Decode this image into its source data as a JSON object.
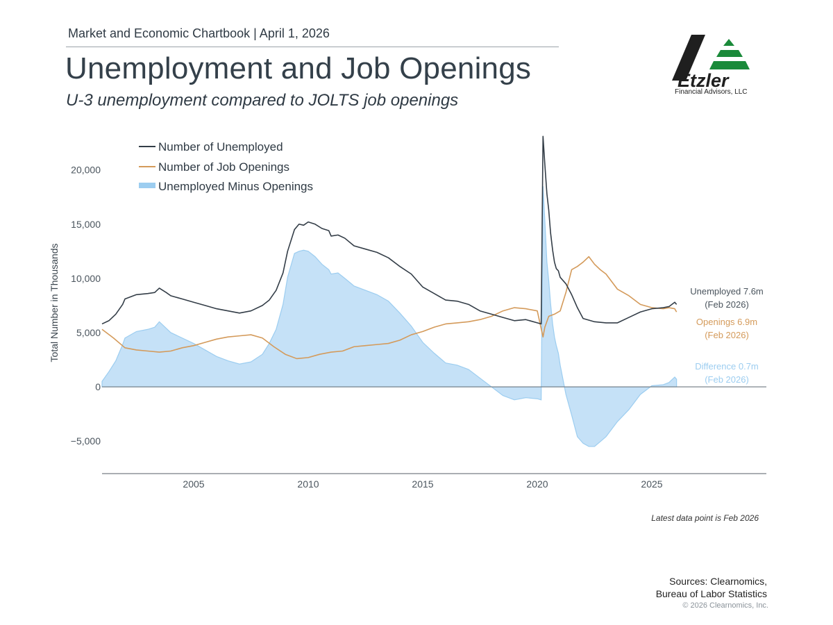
{
  "header": {
    "kicker": "Market and Economic Chartbook | April 1, 2026",
    "title": "Unemployment and Job Openings",
    "subtitle": "U-3 unemployment compared to JOLTS job openings"
  },
  "logo": {
    "name": "Etzler",
    "tagline": "Financial Advisors, LLC",
    "colors": {
      "dark": "#1f1f1f",
      "green": "#1a8a3a"
    }
  },
  "footer": {
    "latest_note": "Latest data point is Feb 2026",
    "sources_line1": "Sources: Clearnomics,",
    "sources_line2": "Bureau of Labor Statistics",
    "copyright": "© 2026 Clearnomics, Inc."
  },
  "chart_data": {
    "type": "line",
    "title": "Unemployment and Job Openings",
    "ylabel": "Total Number in Thousands",
    "xlabel": "",
    "ylim": [
      -8000,
      23500
    ],
    "xlim": [
      2001.0,
      2030.0
    ],
    "yticks": [
      -5000,
      0,
      5000,
      10000,
      15000,
      20000
    ],
    "ytick_labels": [
      "−5,000",
      "0",
      "5,000",
      "10,000",
      "15,000",
      "20,000"
    ],
    "xticks": [
      2005,
      2010,
      2015,
      2020,
      2025
    ],
    "xtick_labels": [
      "2005",
      "2010",
      "2015",
      "2020",
      "2025"
    ],
    "grid": false,
    "legend_position": "top-left",
    "colors": {
      "unemployed": "#333d47",
      "openings": "#d49a5a",
      "difference": "#c5e1f7",
      "difference_edge": "#9ccdf0",
      "zero_line": "#6d7780"
    },
    "series": [
      {
        "name": "Number of Unemployed",
        "x": [
          2001.0,
          2001.3,
          2001.6,
          2001.9,
          2002.0,
          2002.5,
          2003.0,
          2003.3,
          2003.5,
          2003.8,
          2004.0,
          2004.5,
          2005.0,
          2005.5,
          2006.0,
          2006.5,
          2007.0,
          2007.5,
          2008.0,
          2008.3,
          2008.6,
          2008.9,
          2009.1,
          2009.4,
          2009.6,
          2009.8,
          2010.0,
          2010.3,
          2010.6,
          2010.9,
          2011.0,
          2011.3,
          2011.6,
          2012.0,
          2012.5,
          2013.0,
          2013.5,
          2014.0,
          2014.5,
          2015.0,
          2015.5,
          2016.0,
          2016.5,
          2017.0,
          2017.5,
          2018.0,
          2018.5,
          2019.0,
          2019.5,
          2020.0,
          2020.17,
          2020.25,
          2020.33,
          2020.42,
          2020.5,
          2020.58,
          2020.67,
          2020.75,
          2020.83,
          2020.92,
          2021.0,
          2021.25,
          2021.5,
          2021.75,
          2022.0,
          2022.5,
          2023.0,
          2023.5,
          2024.0,
          2024.5,
          2025.0,
          2025.5,
          2025.75,
          2026.0,
          2026.08
        ],
        "values": [
          5800,
          6100,
          6700,
          7600,
          8100,
          8500,
          8600,
          8700,
          9100,
          8700,
          8400,
          8100,
          7800,
          7500,
          7200,
          7000,
          6800,
          7000,
          7500,
          8000,
          8900,
          10500,
          12500,
          14500,
          15000,
          14900,
          15200,
          15000,
          14600,
          14400,
          13900,
          14000,
          13700,
          13000,
          12700,
          12400,
          11900,
          11100,
          10400,
          9200,
          8600,
          8000,
          7900,
          7600,
          7000,
          6700,
          6400,
          6100,
          6200,
          5900,
          5800,
          23100,
          20500,
          17800,
          16300,
          14200,
          12600,
          11500,
          10900,
          10700,
          10100,
          9500,
          8500,
          7300,
          6300,
          6000,
          5900,
          5900,
          6400,
          6900,
          7200,
          7300,
          7400,
          7800,
          7600
        ]
      },
      {
        "name": "Number of Job Openings",
        "x": [
          2001.0,
          2001.5,
          2002.0,
          2002.5,
          2003.0,
          2003.5,
          2004.0,
          2004.5,
          2005.0,
          2005.5,
          2006.0,
          2006.5,
          2007.0,
          2007.5,
          2008.0,
          2008.5,
          2009.0,
          2009.5,
          2010.0,
          2010.5,
          2011.0,
          2011.5,
          2012.0,
          2012.5,
          2013.0,
          2013.5,
          2014.0,
          2014.5,
          2015.0,
          2015.5,
          2016.0,
          2016.5,
          2017.0,
          2017.5,
          2018.0,
          2018.5,
          2019.0,
          2019.5,
          2020.0,
          2020.25,
          2020.33,
          2020.5,
          2020.75,
          2021.0,
          2021.25,
          2021.5,
          2021.75,
          2022.0,
          2022.25,
          2022.5,
          2022.75,
          2023.0,
          2023.5,
          2024.0,
          2024.5,
          2025.0,
          2025.5,
          2025.75,
          2026.0,
          2026.08
        ],
        "values": [
          5300,
          4500,
          3600,
          3400,
          3300,
          3200,
          3300,
          3600,
          3800,
          4100,
          4400,
          4600,
          4700,
          4800,
          4500,
          3700,
          3000,
          2600,
          2700,
          3000,
          3200,
          3300,
          3700,
          3800,
          3900,
          4000,
          4300,
          4800,
          5100,
          5500,
          5800,
          5900,
          6000,
          6200,
          6500,
          7000,
          7300,
          7200,
          7000,
          4600,
          5500,
          6500,
          6700,
          7000,
          8700,
          10800,
          11100,
          11500,
          12000,
          11300,
          10800,
          10400,
          9000,
          8400,
          7600,
          7300,
          7200,
          7300,
          7200,
          6900
        ]
      },
      {
        "name": "Unemployed Minus Openings",
        "x": [
          2001.0,
          2001.3,
          2001.6,
          2001.9,
          2002.0,
          2002.5,
          2003.0,
          2003.3,
          2003.5,
          2003.8,
          2004.0,
          2004.5,
          2005.0,
          2005.5,
          2006.0,
          2006.5,
          2007.0,
          2007.5,
          2008.0,
          2008.3,
          2008.6,
          2008.9,
          2009.1,
          2009.4,
          2009.6,
          2009.8,
          2010.0,
          2010.3,
          2010.6,
          2010.9,
          2011.0,
          2011.3,
          2011.6,
          2012.0,
          2012.5,
          2013.0,
          2013.5,
          2014.0,
          2014.5,
          2015.0,
          2015.5,
          2016.0,
          2016.5,
          2017.0,
          2017.5,
          2018.0,
          2018.5,
          2019.0,
          2019.5,
          2020.0,
          2020.17,
          2020.25,
          2020.33,
          2020.42,
          2020.5,
          2020.58,
          2020.67,
          2020.75,
          2020.83,
          2020.92,
          2021.0,
          2021.25,
          2021.5,
          2021.75,
          2022.0,
          2022.25,
          2022.5,
          2023.0,
          2023.5,
          2024.0,
          2024.5,
          2025.0,
          2025.5,
          2025.75,
          2026.0,
          2026.08
        ],
        "values": [
          500,
          1400,
          2400,
          3900,
          4500,
          5100,
          5300,
          5500,
          6000,
          5400,
          5000,
          4500,
          4000,
          3400,
          2800,
          2400,
          2100,
          2300,
          3000,
          4000,
          5300,
          7600,
          10100,
          12300,
          12500,
          12600,
          12500,
          12000,
          11300,
          10800,
          10400,
          10500,
          10000,
          9300,
          8900,
          8500,
          7900,
          6800,
          5600,
          4100,
          3100,
          2200,
          2000,
          1600,
          800,
          0,
          -800,
          -1200,
          -1000,
          -1100,
          -1200,
          18500,
          15300,
          11500,
          9800,
          7700,
          5800,
          4600,
          3800,
          3100,
          2000,
          -700,
          -2600,
          -4600,
          -5200,
          -5500,
          -5500,
          -4600,
          -3200,
          -2100,
          -700,
          100,
          200,
          400,
          900,
          700
        ]
      }
    ],
    "end_labels": [
      {
        "series": "Number of Unemployed",
        "line1": "Unemployed 7.6m",
        "line2": "(Feb 2026)"
      },
      {
        "series": "Number of Job Openings",
        "line1": "Openings 6.9m",
        "line2": "(Feb 2026)"
      },
      {
        "series": "Unemployed Minus Openings",
        "line1": "Difference 0.7m",
        "line2": "(Feb 2026)"
      }
    ]
  }
}
